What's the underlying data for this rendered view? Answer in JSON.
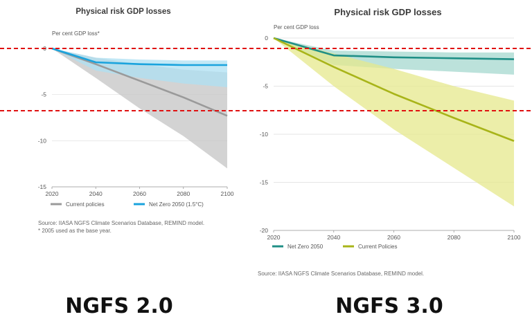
{
  "chart_data": [
    {
      "type": "line",
      "title": "Physical risk GDP losses",
      "ylabel": "Per cent GDP loss*",
      "x": [
        2020,
        2040,
        2060,
        2080,
        2100
      ],
      "xlim": [
        2020,
        2100
      ],
      "ylim": [
        -15,
        0
      ],
      "yticks": [
        0,
        -5,
        -10,
        -15
      ],
      "ytick_labels": [
        "0",
        "-5",
        "-10",
        "-15"
      ],
      "xtick_labels": [
        "2020",
        "2040",
        "2060",
        "2080",
        "2100"
      ],
      "grid": true,
      "series": [
        {
          "name": "Current policies",
          "color": "#9a9a9a",
          "band_color": "#c4c4c4",
          "values": [
            0,
            -1.7,
            -3.5,
            -5.3,
            -7.3
          ],
          "band_low": [
            0,
            -3.2,
            -6.5,
            -9.5,
            -13.0
          ],
          "band_high": [
            0,
            -1.0,
            -1.7,
            -2.3,
            -2.6
          ]
        },
        {
          "name": "Net Zero 2050 (1.5°C)",
          "color": "#1aa3dd",
          "band_color": "#aee0f3",
          "values": [
            0,
            -1.5,
            -1.7,
            -1.8,
            -1.8
          ],
          "band_low": [
            0,
            -2.4,
            -3.2,
            -3.8,
            -4.2
          ],
          "band_high": [
            0,
            -1.0,
            -1.2,
            -1.3,
            -1.3
          ]
        }
      ],
      "legend_position": "bottom",
      "source_lines": [
        "Source: IIASA NGFS Climate Scenarios Database, REMIND model.",
        "*  2005 used as the base year."
      ],
      "reference_lines": [
        0,
        -7.3
      ],
      "reference_color": "#e01010"
    },
    {
      "type": "line",
      "title": "Physical risk GDP losses",
      "ylabel": "Per cent GDP loss",
      "x": [
        2020,
        2040,
        2060,
        2080,
        2100
      ],
      "xlim": [
        2020,
        2100
      ],
      "ylim": [
        -20,
        0
      ],
      "yticks": [
        0,
        -5,
        -10,
        -15,
        -20
      ],
      "ytick_labels": [
        "0",
        "-5",
        "-10",
        "-15",
        "-20"
      ],
      "xtick_labels": [
        "2020",
        "2040",
        "2060",
        "2080",
        "2100"
      ],
      "grid": true,
      "series": [
        {
          "name": "Net Zero 2050",
          "color": "#1f8f86",
          "band_color": "#a6d8cf",
          "values": [
            0,
            -1.8,
            -2.0,
            -2.1,
            -2.2
          ],
          "band_low": [
            0,
            -2.8,
            -3.2,
            -3.5,
            -3.8
          ],
          "band_high": [
            0,
            -1.3,
            -1.4,
            -1.5,
            -1.5
          ]
        },
        {
          "name": "Current Policies",
          "color": "#a8b419",
          "band_color": "#e6e88c",
          "values": [
            0,
            -3.0,
            -5.8,
            -8.3,
            -10.7
          ],
          "band_low": [
            0,
            -5.0,
            -9.5,
            -13.5,
            -17.5
          ],
          "band_high": [
            0,
            -1.6,
            -3.2,
            -5.0,
            -6.5
          ]
        }
      ],
      "legend_position": "bottom",
      "source_lines": [
        "Source: IIASA NGFS Climate Scenarios Database, REMIND model."
      ],
      "reference_lines": [
        -1.4,
        -7.7
      ],
      "reference_color": "#e01010"
    }
  ],
  "captions": [
    "NGFS 2.0",
    "NGFS 3.0"
  ]
}
